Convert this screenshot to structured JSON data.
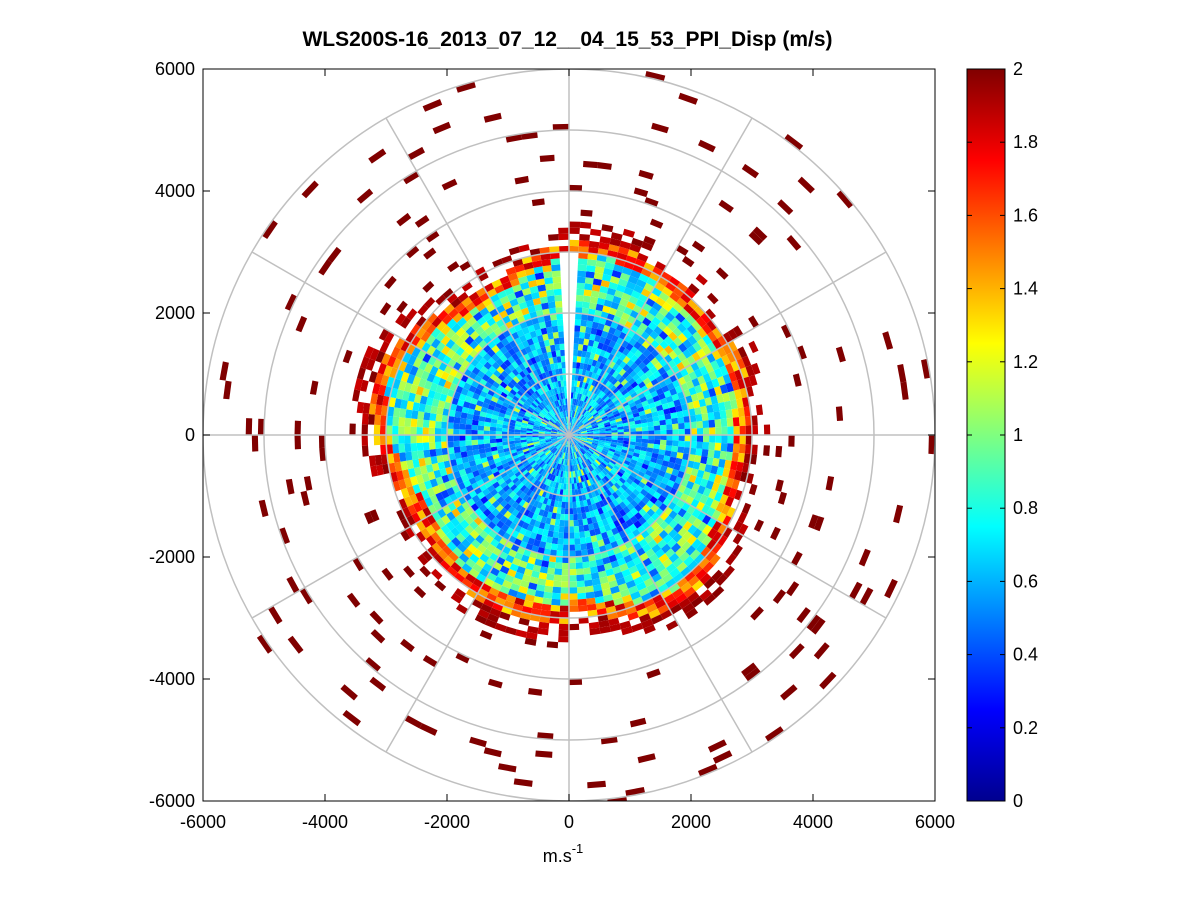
{
  "title": "WLS200S-16_2013_07_12__04_15_53_PPI_Disp (m/s)",
  "chart_data": {
    "type": "heatmap",
    "subtype": "polar PPI scan",
    "title": "WLS200S-16_2013_07_12__04_15_53_PPI_Disp (m/s)",
    "xlabel": "m.s",
    "xlabel_superscript": "-1",
    "ylabel": "",
    "xlim": [
      -6000,
      6000
    ],
    "ylim": [
      -6000,
      6000
    ],
    "xticks": [
      "-6000",
      "-4000",
      "-2000",
      "0",
      "2000",
      "4000",
      "6000"
    ],
    "yticks": [
      "6000",
      "4000",
      "2000",
      "0",
      "-2000",
      "-4000",
      "-6000"
    ],
    "polar_grid": {
      "range_rings": [
        1000,
        2000,
        3000,
        4000,
        5000,
        6000
      ],
      "spoke_step_deg": 30
    },
    "colorbar": {
      "min": 0,
      "max": 2,
      "colormap": "jet",
      "ticks": [
        "0",
        "0.2",
        "0.4",
        "0.6",
        "0.8",
        "1",
        "1.2",
        "1.4",
        "1.6",
        "1.8",
        "2"
      ]
    },
    "regions": [
      {
        "range_from": 0,
        "range_to": 2000,
        "dispersion_typical": 0.65,
        "note": "cyan/blue core"
      },
      {
        "range_from": 2000,
        "range_to": 2800,
        "dispersion_typical": 0.9,
        "note": "mixed cyan, green, yellow"
      },
      {
        "range_from": 2800,
        "range_to": 3300,
        "dispersion_typical": 1.7,
        "note": "red/orange rim"
      },
      {
        "range_from": 3300,
        "range_to": 6000,
        "dispersion_typical": 2.0,
        "note": "sparse dark red gates"
      }
    ],
    "data_gap": {
      "azimuth_from_deg": -3,
      "azimuth_to_deg": 3,
      "range_from": 0,
      "range_to": 3000
    }
  }
}
